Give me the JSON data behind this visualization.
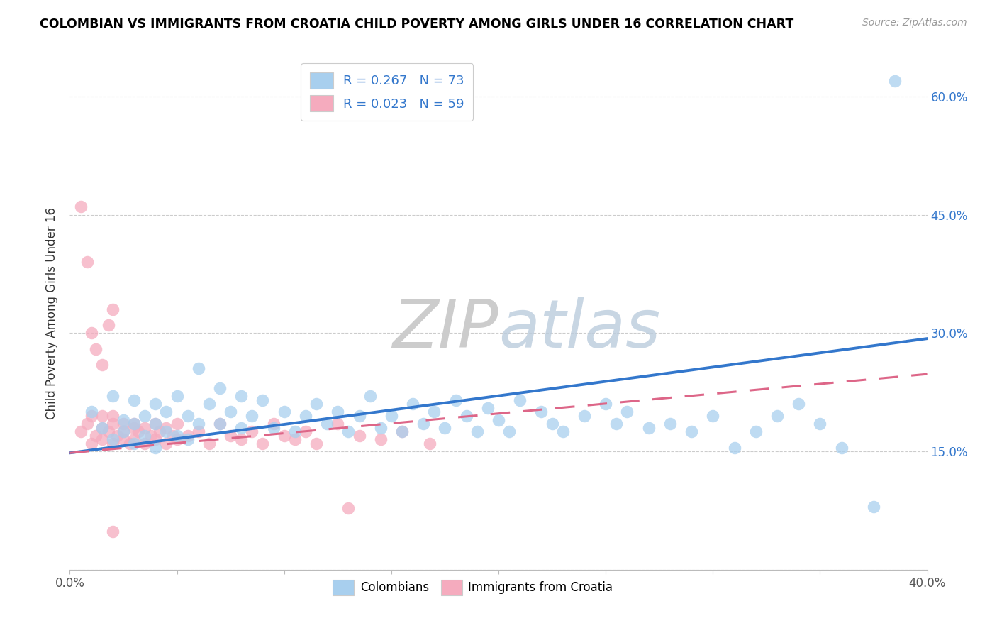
{
  "title": "COLOMBIAN VS IMMIGRANTS FROM CROATIA CHILD POVERTY AMONG GIRLS UNDER 16 CORRELATION CHART",
  "source": "Source: ZipAtlas.com",
  "ylabel": "Child Poverty Among Girls Under 16",
  "xlim": [
    0.0,
    0.4
  ],
  "ylim": [
    0.0,
    0.65
  ],
  "yticks": [
    0.0,
    0.15,
    0.3,
    0.45,
    0.6
  ],
  "ytick_labels": [
    "",
    "15.0%",
    "30.0%",
    "45.0%",
    "60.0%"
  ],
  "xticks": [
    0.0,
    0.05,
    0.1,
    0.15,
    0.2,
    0.25,
    0.3,
    0.35,
    0.4
  ],
  "xtick_labels": [
    "0.0%",
    "",
    "",
    "",
    "",
    "",
    "",
    "",
    "40.0%"
  ],
  "blue_R": 0.267,
  "blue_N": 73,
  "pink_R": 0.023,
  "pink_N": 59,
  "blue_color": "#A8CFEE",
  "pink_color": "#F5ABBE",
  "blue_line_color": "#3377CC",
  "pink_line_color": "#DD6688",
  "watermark_color": "#DEDEDE",
  "blue_line_x": [
    0.0,
    0.4
  ],
  "blue_line_y": [
    0.148,
    0.293
  ],
  "pink_line_x": [
    0.0,
    0.4
  ],
  "pink_line_y": [
    0.148,
    0.248
  ],
  "blue_scatter_x": [
    0.01,
    0.015,
    0.02,
    0.02,
    0.025,
    0.025,
    0.03,
    0.03,
    0.03,
    0.035,
    0.035,
    0.04,
    0.04,
    0.04,
    0.045,
    0.045,
    0.05,
    0.05,
    0.055,
    0.055,
    0.06,
    0.06,
    0.065,
    0.07,
    0.07,
    0.075,
    0.08,
    0.08,
    0.085,
    0.09,
    0.095,
    0.1,
    0.105,
    0.11,
    0.115,
    0.12,
    0.125,
    0.13,
    0.135,
    0.14,
    0.145,
    0.15,
    0.155,
    0.16,
    0.165,
    0.17,
    0.175,
    0.18,
    0.185,
    0.19,
    0.195,
    0.2,
    0.205,
    0.21,
    0.22,
    0.225,
    0.23,
    0.24,
    0.25,
    0.255,
    0.26,
    0.27,
    0.28,
    0.29,
    0.3,
    0.31,
    0.32,
    0.33,
    0.34,
    0.35,
    0.36,
    0.375,
    0.385
  ],
  "blue_scatter_y": [
    0.2,
    0.18,
    0.22,
    0.165,
    0.19,
    0.175,
    0.215,
    0.185,
    0.16,
    0.195,
    0.17,
    0.21,
    0.185,
    0.155,
    0.2,
    0.175,
    0.22,
    0.17,
    0.195,
    0.165,
    0.255,
    0.185,
    0.21,
    0.23,
    0.185,
    0.2,
    0.22,
    0.18,
    0.195,
    0.215,
    0.18,
    0.2,
    0.175,
    0.195,
    0.21,
    0.185,
    0.2,
    0.175,
    0.195,
    0.22,
    0.18,
    0.195,
    0.175,
    0.21,
    0.185,
    0.2,
    0.18,
    0.215,
    0.195,
    0.175,
    0.205,
    0.19,
    0.175,
    0.215,
    0.2,
    0.185,
    0.175,
    0.195,
    0.21,
    0.185,
    0.2,
    0.18,
    0.185,
    0.175,
    0.195,
    0.155,
    0.175,
    0.195,
    0.21,
    0.185,
    0.155,
    0.08,
    0.62
  ],
  "pink_scatter_x": [
    0.005,
    0.008,
    0.01,
    0.01,
    0.012,
    0.015,
    0.015,
    0.015,
    0.018,
    0.02,
    0.02,
    0.02,
    0.022,
    0.025,
    0.025,
    0.025,
    0.028,
    0.03,
    0.03,
    0.03,
    0.032,
    0.035,
    0.035,
    0.038,
    0.04,
    0.04,
    0.042,
    0.045,
    0.045,
    0.048,
    0.05,
    0.05,
    0.055,
    0.06,
    0.065,
    0.07,
    0.075,
    0.08,
    0.085,
    0.09,
    0.095,
    0.1,
    0.105,
    0.11,
    0.115,
    0.125,
    0.135,
    0.145,
    0.155,
    0.168,
    0.005,
    0.008,
    0.01,
    0.012,
    0.015,
    0.018,
    0.02,
    0.13,
    0.02
  ],
  "pink_scatter_y": [
    0.175,
    0.185,
    0.16,
    0.195,
    0.17,
    0.18,
    0.195,
    0.165,
    0.175,
    0.185,
    0.16,
    0.195,
    0.17,
    0.165,
    0.185,
    0.175,
    0.16,
    0.18,
    0.165,
    0.185,
    0.175,
    0.16,
    0.18,
    0.17,
    0.165,
    0.185,
    0.175,
    0.16,
    0.18,
    0.17,
    0.165,
    0.185,
    0.17,
    0.175,
    0.16,
    0.185,
    0.17,
    0.165,
    0.175,
    0.16,
    0.185,
    0.17,
    0.165,
    0.175,
    0.16,
    0.185,
    0.17,
    0.165,
    0.175,
    0.16,
    0.46,
    0.39,
    0.3,
    0.28,
    0.26,
    0.31,
    0.33,
    0.078,
    0.048
  ]
}
